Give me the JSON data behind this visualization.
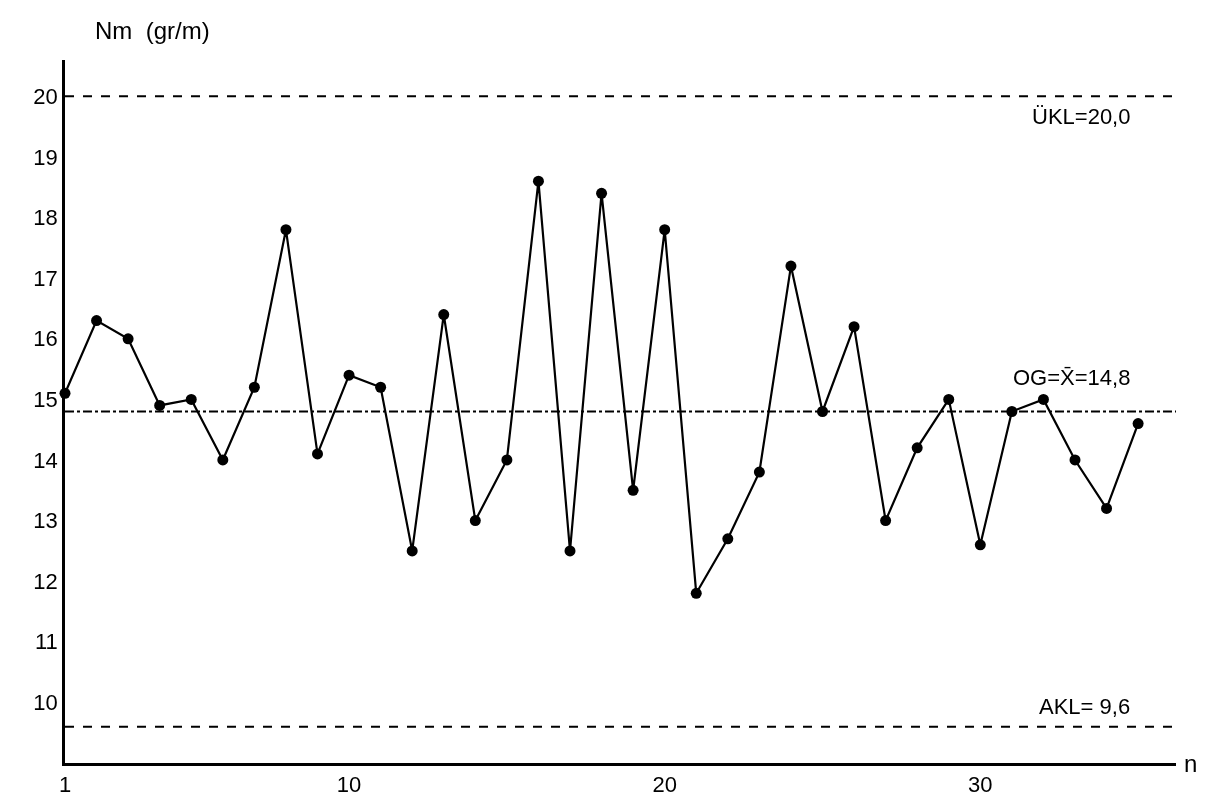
{
  "chart_data": {
    "type": "line",
    "xlabel": "n",
    "ylabel": "Nm  (gr/m)",
    "x": [
      1,
      2,
      3,
      4,
      5,
      6,
      7,
      8,
      9,
      10,
      11,
      12,
      13,
      14,
      15,
      16,
      17,
      18,
      19,
      20,
      21,
      22,
      23,
      24,
      25,
      26,
      27,
      28,
      29,
      30,
      31,
      32,
      33,
      34,
      35
    ],
    "series": [
      {
        "color": "#000000",
        "values": [
          15.1,
          16.3,
          16.0,
          14.9,
          15.0,
          14.0,
          15.2,
          17.8,
          14.1,
          15.4,
          15.2,
          12.5,
          16.4,
          13.0,
          14.0,
          18.6,
          12.5,
          18.4,
          13.5,
          17.8,
          11.8,
          12.7,
          13.8,
          17.2,
          14.8,
          16.2,
          13.0,
          14.2,
          15.0,
          12.6,
          14.8,
          15.0,
          14.0,
          13.2,
          14.6
        ]
      }
    ],
    "xlim": [
      1,
      36.2
    ],
    "xticks": [
      1,
      10,
      20,
      30
    ],
    "ylim": [
      9,
      20.6
    ],
    "yticks": [
      10,
      11,
      12,
      13,
      14,
      15,
      16,
      17,
      18,
      19,
      20
    ],
    "ref_lines": [
      {
        "axis": "y",
        "value": 20.0,
        "label": "ÜKL=20,0",
        "color": "#000000",
        "line_style": "dashed"
      },
      {
        "axis": "y",
        "value": 14.8,
        "label": "OG=X̄=14,8",
        "color": "#000000",
        "line_style": "dashdot"
      },
      {
        "axis": "y",
        "value": 9.6,
        "label": "AKL= 9,6",
        "color": "#000000",
        "line_style": "dashed"
      }
    ],
    "grid": false,
    "legend": false,
    "marker": "circle",
    "line_style": "solid"
  }
}
